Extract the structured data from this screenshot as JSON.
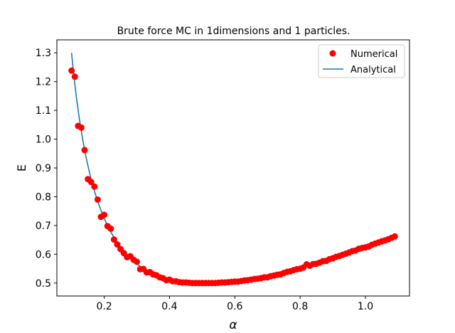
{
  "chart_data": {
    "type": "scatter",
    "title": "Brute force MC in 1dimensions and 1 particles.",
    "xlabel": "α",
    "ylabel": "E",
    "xlim": [
      0.055,
      1.135
    ],
    "ylim": [
      0.455,
      1.345
    ],
    "xticks": [
      0.2,
      0.4,
      0.6,
      0.8,
      1.0
    ],
    "xtick_labels": [
      "0.2",
      "0.4",
      "0.6",
      "0.8",
      "1.0"
    ],
    "yticks": [
      0.5,
      0.6,
      0.7,
      0.8,
      0.9,
      1.0,
      1.1,
      1.2,
      1.3
    ],
    "ytick_labels": [
      "0.5",
      "0.6",
      "0.7",
      "0.8",
      "0.9",
      "1.0",
      "1.1",
      "1.2",
      "1.3"
    ],
    "grid": false,
    "legend": {
      "position": "top-right",
      "entries": [
        "Numerical",
        "Analytical"
      ]
    },
    "colors": {
      "numerical": "#ff0000",
      "analytical": "#1f77b4"
    },
    "series": [
      {
        "name": "Numerical",
        "kind": "scatter",
        "x": [
          0.1,
          0.11,
          0.12,
          0.13,
          0.14,
          0.15,
          0.16,
          0.17,
          0.18,
          0.19,
          0.2,
          0.21,
          0.22,
          0.23,
          0.24,
          0.25,
          0.26,
          0.27,
          0.28,
          0.29,
          0.3,
          0.31,
          0.32,
          0.33,
          0.34,
          0.35,
          0.36,
          0.37,
          0.38,
          0.39,
          0.4,
          0.41,
          0.42,
          0.43,
          0.44,
          0.45,
          0.46,
          0.47,
          0.48,
          0.49,
          0.5,
          0.51,
          0.52,
          0.53,
          0.54,
          0.55,
          0.56,
          0.57,
          0.58,
          0.59,
          0.6,
          0.61,
          0.62,
          0.63,
          0.64,
          0.65,
          0.66,
          0.67,
          0.68,
          0.69,
          0.7,
          0.71,
          0.72,
          0.73,
          0.74,
          0.75,
          0.76,
          0.77,
          0.78,
          0.79,
          0.8,
          0.81,
          0.82,
          0.83,
          0.84,
          0.85,
          0.86,
          0.87,
          0.88,
          0.89,
          0.9,
          0.91,
          0.92,
          0.93,
          0.94,
          0.95,
          0.96,
          0.97,
          0.98,
          0.99,
          1.0,
          1.01,
          1.02,
          1.03,
          1.04,
          1.05,
          1.06,
          1.07,
          1.08,
          1.09
        ],
        "y": [
          1.238,
          1.217,
          1.046,
          1.04,
          0.962,
          0.861,
          0.851,
          0.835,
          0.79,
          0.73,
          0.737,
          0.698,
          0.689,
          0.651,
          0.634,
          0.618,
          0.604,
          0.59,
          0.593,
          0.581,
          0.574,
          0.548,
          0.549,
          0.537,
          0.538,
          0.53,
          0.527,
          0.52,
          0.517,
          0.51,
          0.512,
          0.506,
          0.506,
          0.503,
          0.502,
          0.502,
          0.501,
          0.5,
          0.5,
          0.5,
          0.5,
          0.5,
          0.5,
          0.5,
          0.5,
          0.501,
          0.502,
          0.502,
          0.503,
          0.504,
          0.505,
          0.505,
          0.507,
          0.509,
          0.51,
          0.512,
          0.514,
          0.515,
          0.517,
          0.52,
          0.52,
          0.524,
          0.526,
          0.529,
          0.53,
          0.535,
          0.539,
          0.541,
          0.545,
          0.548,
          0.55,
          0.554,
          0.565,
          0.56,
          0.566,
          0.567,
          0.571,
          0.576,
          0.577,
          0.583,
          0.586,
          0.591,
          0.594,
          0.598,
          0.602,
          0.606,
          0.611,
          0.613,
          0.619,
          0.622,
          0.624,
          0.627,
          0.633,
          0.637,
          0.641,
          0.645,
          0.648,
          0.652,
          0.657,
          0.662
        ]
      },
      {
        "name": "Analytical",
        "kind": "line",
        "formula": "E = α/2 + 1/(8α)",
        "x_range": [
          0.1,
          1.09
        ]
      }
    ]
  }
}
